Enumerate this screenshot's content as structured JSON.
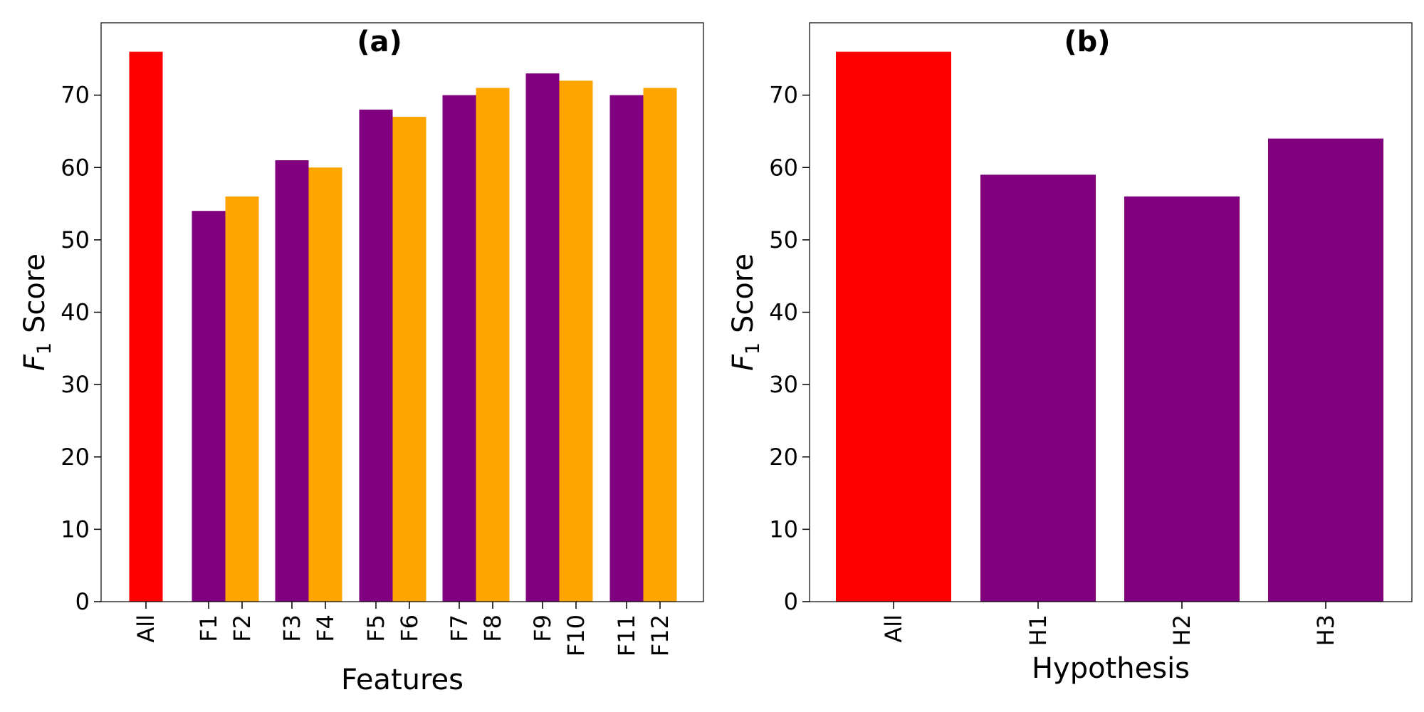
{
  "chart_data": [
    {
      "type": "bar",
      "title": "(a)",
      "xlabel": "Features",
      "ylabel": "F1 Score",
      "ylabel_main": "F",
      "ylabel_sub": "1",
      "ylabel_rest": " Score",
      "ylim": [
        0,
        80
      ],
      "yticks": [
        0,
        10,
        20,
        30,
        40,
        50,
        60,
        70
      ],
      "categories": [
        "All",
        "F1",
        "F2",
        "F3",
        "F4",
        "F5",
        "F6",
        "F7",
        "F8",
        "F9",
        "F10",
        "F11",
        "F12"
      ],
      "values": [
        76,
        54,
        56,
        61,
        60,
        68,
        67,
        70,
        71,
        73,
        72,
        70,
        71
      ],
      "bar_colors": [
        "#ff0000",
        "#800080",
        "#ffa500",
        "#800080",
        "#ffa500",
        "#800080",
        "#ffa500",
        "#800080",
        "#ffa500",
        "#800080",
        "#ffa500",
        "#800080",
        "#ffa500"
      ]
    },
    {
      "type": "bar",
      "title": "(b)",
      "xlabel": "Hypothesis",
      "ylabel": "F1 Score",
      "ylabel_main": "F",
      "ylabel_sub": "1",
      "ylabel_rest": " Score",
      "ylim": [
        0,
        80
      ],
      "yticks": [
        0,
        10,
        20,
        30,
        40,
        50,
        60,
        70
      ],
      "categories": [
        "All",
        "H1",
        "H2",
        "H3"
      ],
      "values": [
        76,
        59,
        56,
        64
      ],
      "bar_colors": [
        "#ff0000",
        "#800080",
        "#800080",
        "#800080"
      ]
    }
  ]
}
